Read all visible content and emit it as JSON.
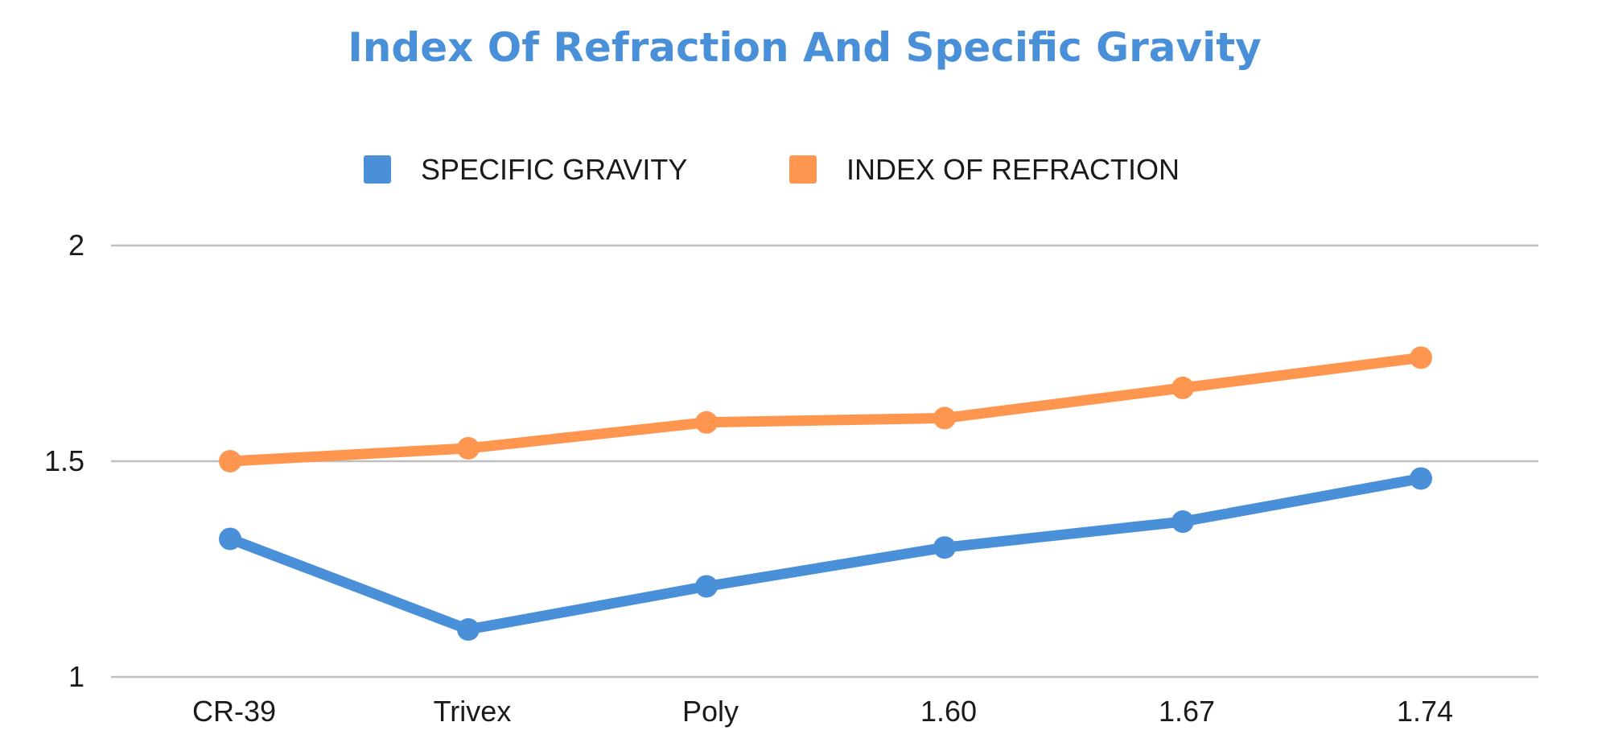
{
  "chart_data": {
    "type": "line",
    "title": "Index Of Refraction And Specific Gravity",
    "categories": [
      "CR-39",
      "Trivex",
      "Poly",
      "1.60",
      "1.67",
      "1.74"
    ],
    "series": [
      {
        "name": "SPECIFIC GRAVITY",
        "color": "#4a90d9",
        "values": [
          1.32,
          1.11,
          1.21,
          1.3,
          1.36,
          1.46
        ]
      },
      {
        "name": "INDEX OF REFRACTION",
        "color": "#ff9650",
        "values": [
          1.5,
          1.53,
          1.59,
          1.6,
          1.67,
          1.74
        ]
      }
    ],
    "ylim": [
      1,
      2
    ],
    "yticks": [
      {
        "value": 1,
        "label": "1"
      },
      {
        "value": 1.5,
        "label": "1.5"
      },
      {
        "value": 2,
        "label": "2"
      }
    ],
    "xlabel": "",
    "ylabel": "",
    "grid": true,
    "legend_position": "top-center",
    "title_color": "#4a90d9",
    "grid_color": "#bfbfbf"
  }
}
